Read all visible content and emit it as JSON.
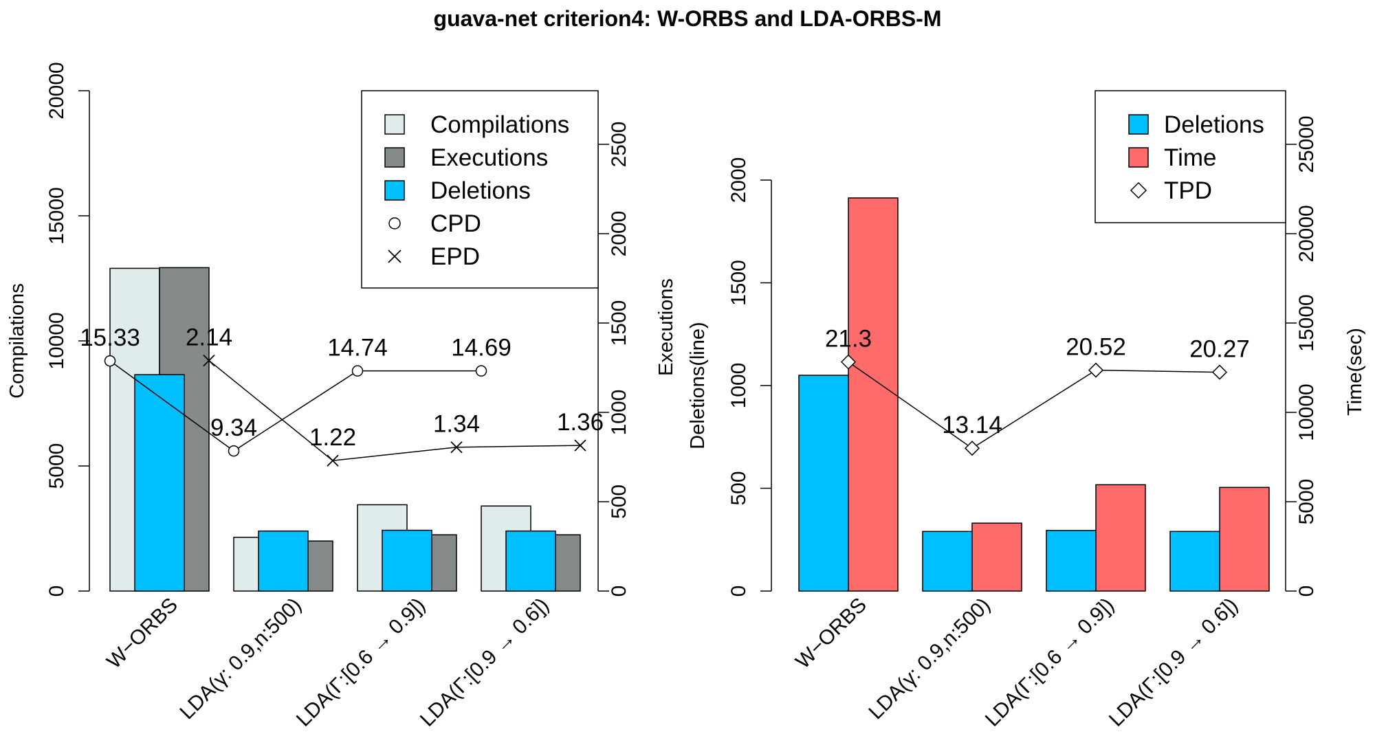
{
  "title": "guava-net criterion4: W-ORBS and LDA-ORBS-M",
  "colors": {
    "compilations": "#E0ECEC",
    "executions": "#858B8B",
    "deletions": "#00BFFF",
    "time": "#FF6A6A",
    "line": "#000000"
  },
  "chart_data": [
    {
      "type": "bar",
      "name": "left",
      "categories": [
        "W−ORBS",
        "LDA(γ: 0.9,n:500)",
        "LDA(Γ:[0.6 → 0.9])",
        "LDA(Γ:[0.9 → 0.6])"
      ],
      "ylabel": "Compilations",
      "ylim": [
        0,
        20000
      ],
      "yticks": [
        0,
        5000,
        10000,
        15000,
        20000
      ],
      "y2label": "Executions",
      "y2lim": [
        0,
        2800
      ],
      "y2ticks": [
        0,
        500,
        1000,
        1500,
        2000,
        2500
      ],
      "grid": false,
      "legend_position": "top-right",
      "legend": [
        {
          "label": "Compilations",
          "kind": "box",
          "color_key": "compilations"
        },
        {
          "label": "Executions",
          "kind": "box",
          "color_key": "executions"
        },
        {
          "label": "Deletions",
          "kind": "box",
          "color_key": "deletions"
        },
        {
          "label": "CPD",
          "kind": "circle"
        },
        {
          "label": "EPD",
          "kind": "cross"
        }
      ],
      "series": [
        {
          "name": "Compilations",
          "axis": "left",
          "color_key": "compilations",
          "values": [
            12900,
            2150,
            3450,
            3400
          ]
        },
        {
          "name": "Executions",
          "axis": "right",
          "color_key": "executions",
          "values": [
            1810,
            280,
            315,
            315
          ]
        },
        {
          "name": "Deletions",
          "axis": "left",
          "color_key": "deletions",
          "values": [
            8650,
            2400,
            2430,
            2400
          ]
        }
      ],
      "lines": [
        {
          "name": "CPD",
          "marker": "circle",
          "axis": "left",
          "y": [
            9200,
            5600,
            8800,
            8800
          ],
          "labels": [
            "15.33",
            "9.34",
            "14.74",
            "14.69"
          ]
        },
        {
          "name": "EPD",
          "marker": "cross",
          "axis": "right",
          "y": [
            1290,
            730,
            805,
            815
          ],
          "labels": [
            "2.14",
            "1.22",
            "1.34",
            "1.36"
          ]
        }
      ]
    },
    {
      "type": "bar",
      "name": "right",
      "categories": [
        "W−ORBS",
        "LDA(γ: 0.9,n:500)",
        "LDA(Γ:[0.6 → 0.9])",
        "LDA(Γ:[0.9 → 0.6])"
      ],
      "ylabel": "Deletions(line)",
      "ylim": [
        0,
        2000
      ],
      "yticks": [
        0,
        500,
        1000,
        1500,
        2000
      ],
      "y2label": "Time(sec)",
      "y2lim": [
        0,
        28000
      ],
      "y2ticks": [
        0,
        5000,
        10000,
        15000,
        20000,
        25000
      ],
      "grid": false,
      "legend_position": "top-right",
      "legend": [
        {
          "label": "Deletions",
          "kind": "box",
          "color_key": "deletions"
        },
        {
          "label": "Time",
          "kind": "box",
          "color_key": "time"
        },
        {
          "label": "TPD",
          "kind": "diamond"
        }
      ],
      "series": [
        {
          "name": "Deletions",
          "axis": "left",
          "color_key": "deletions",
          "values": [
            1050,
            290,
            295,
            290
          ]
        },
        {
          "name": "Time",
          "axis": "right",
          "color_key": "time",
          "values": [
            22000,
            3800,
            5950,
            5800
          ]
        }
      ],
      "lines": [
        {
          "name": "TPD",
          "marker": "diamond",
          "axis": "left",
          "y": [
            1115,
            695,
            1075,
            1065
          ],
          "labels": [
            "21.3",
            "13.14",
            "20.52",
            "20.27"
          ]
        }
      ]
    }
  ]
}
